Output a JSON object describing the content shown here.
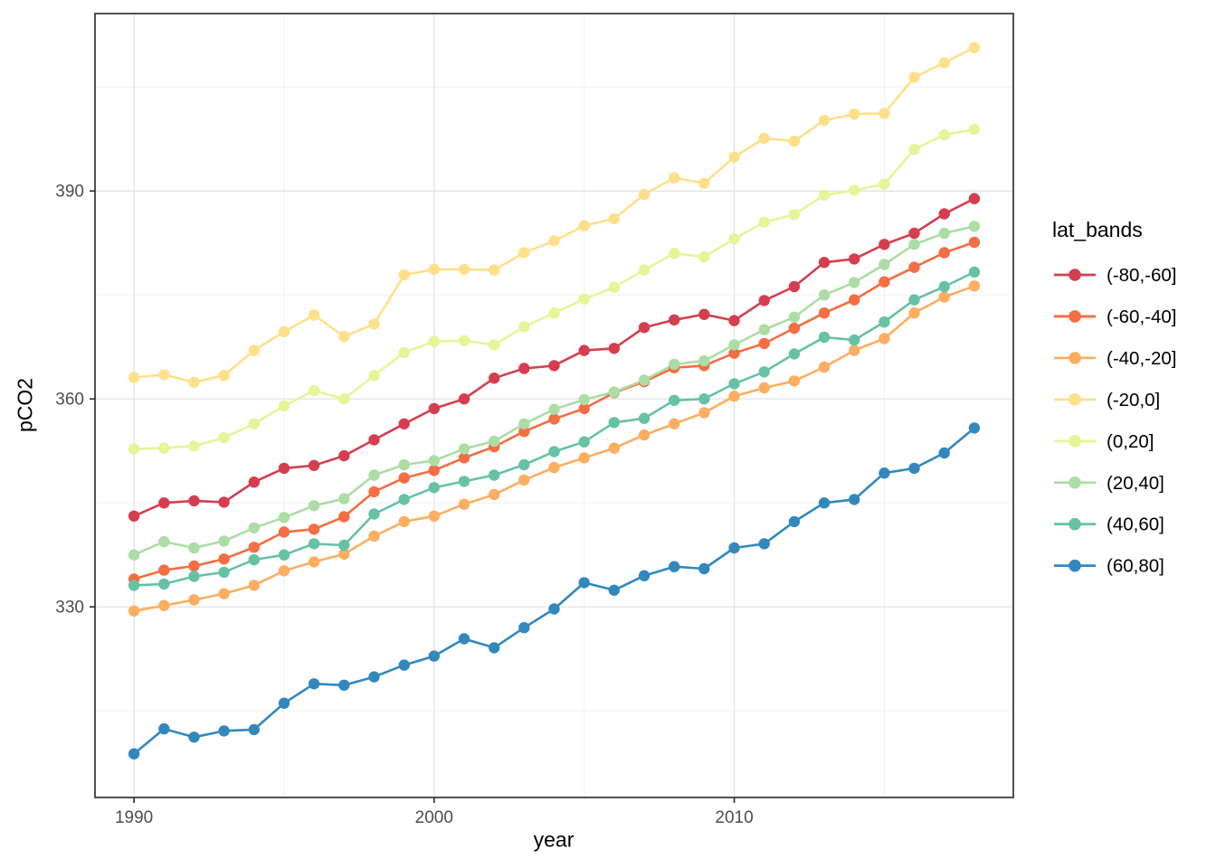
{
  "chart_data": {
    "type": "line",
    "title": "",
    "xlabel": "year",
    "ylabel": "pCO2",
    "legend_title": "lat_bands",
    "legend_position": "right",
    "grid": true,
    "x_domain": [
      1988.7,
      2019.3
    ],
    "y_domain": [
      302.5,
      415.6
    ],
    "x_ticks": [
      1990,
      2000,
      2010
    ],
    "x_minor_ticks": [
      1995,
      2005,
      2015
    ],
    "y_ticks": [
      330,
      360,
      390
    ],
    "y_minor_ticks": [
      315,
      345,
      375,
      405
    ],
    "x": [
      1990,
      1991,
      1992,
      1993,
      1994,
      1995,
      1996,
      1997,
      1998,
      1999,
      2000,
      2001,
      2002,
      2003,
      2004,
      2005,
      2006,
      2007,
      2008,
      2009,
      2010,
      2011,
      2012,
      2013,
      2014,
      2015,
      2016,
      2017,
      2018
    ],
    "series": [
      {
        "name": "(-80,-60]",
        "color": "#d53e4f",
        "values": [
          343.1,
          345.0,
          345.3,
          345.1,
          348.0,
          350.0,
          350.4,
          351.8,
          354.1,
          356.4,
          358.6,
          360.0,
          363.0,
          364.4,
          364.8,
          367.0,
          367.3,
          370.3,
          371.4,
          372.2,
          371.3,
          374.2,
          376.2,
          379.7,
          380.2,
          382.3,
          383.9,
          386.7,
          388.9
        ]
      },
      {
        "name": "(-60,-40]",
        "color": "#f46d43",
        "values": [
          334.0,
          335.3,
          335.9,
          336.9,
          338.6,
          340.8,
          341.2,
          343.0,
          346.6,
          348.6,
          349.7,
          351.5,
          353.1,
          355.3,
          357.1,
          358.6,
          360.9,
          362.5,
          364.5,
          364.8,
          366.6,
          368.0,
          370.2,
          372.4,
          374.3,
          376.9,
          379.0,
          381.1,
          382.6
        ]
      },
      {
        "name": "(-40,-20]",
        "color": "#fdae61",
        "values": [
          329.4,
          330.2,
          331.0,
          331.9,
          333.1,
          335.2,
          336.5,
          337.6,
          340.2,
          342.3,
          343.1,
          344.8,
          346.2,
          348.3,
          350.1,
          351.5,
          352.9,
          354.8,
          356.4,
          358.0,
          360.4,
          361.6,
          362.6,
          364.6,
          367.0,
          368.7,
          372.4,
          374.7,
          376.3
        ]
      },
      {
        "name": "(-20,0]",
        "color": "#fee08b",
        "values": [
          363.1,
          363.5,
          362.4,
          363.4,
          367.0,
          369.7,
          372.1,
          369.0,
          370.8,
          377.9,
          378.7,
          378.7,
          378.6,
          381.1,
          382.8,
          385.0,
          386.0,
          389.5,
          391.9,
          391.1,
          394.9,
          397.6,
          397.2,
          400.2,
          401.1,
          401.2,
          406.4,
          408.5,
          410.7
        ]
      },
      {
        "name": "(0,20]",
        "color": "#e6f598",
        "values": [
          352.8,
          352.9,
          353.2,
          354.4,
          356.4,
          359.0,
          361.2,
          360.0,
          363.4,
          366.7,
          368.3,
          368.4,
          367.8,
          370.4,
          372.4,
          374.4,
          376.1,
          378.6,
          381.0,
          380.5,
          383.1,
          385.5,
          386.6,
          389.4,
          390.1,
          391.0,
          396.0,
          398.1,
          398.9
        ]
      },
      {
        "name": "(20,40]",
        "color": "#abdda4",
        "values": [
          337.5,
          339.4,
          338.5,
          339.5,
          341.4,
          342.9,
          344.6,
          345.6,
          349.0,
          350.5,
          351.1,
          352.8,
          353.9,
          356.4,
          358.5,
          359.9,
          361.0,
          362.7,
          365.0,
          365.5,
          367.8,
          370.0,
          371.8,
          375.0,
          376.8,
          379.4,
          382.3,
          383.9,
          384.9
        ]
      },
      {
        "name": "(40,60]",
        "color": "#66c2a5",
        "values": [
          333.1,
          333.3,
          334.4,
          335.0,
          336.8,
          337.5,
          339.1,
          338.9,
          343.4,
          345.5,
          347.2,
          348.1,
          349.0,
          350.5,
          352.4,
          353.8,
          356.6,
          357.2,
          359.8,
          360.0,
          362.2,
          363.9,
          366.5,
          368.9,
          368.5,
          371.1,
          374.3,
          376.2,
          378.3
        ]
      },
      {
        "name": "(60,80]",
        "color": "#3288bd",
        "values": [
          308.8,
          312.4,
          311.2,
          312.1,
          312.3,
          316.1,
          318.9,
          318.7,
          319.9,
          321.6,
          322.9,
          325.4,
          324.1,
          327.0,
          329.7,
          333.5,
          332.4,
          334.5,
          335.8,
          335.5,
          338.5,
          339.1,
          342.3,
          345.0,
          345.5,
          349.3,
          350.0,
          352.2,
          355.8
        ]
      }
    ],
    "style": {
      "panel_border_color": "#333333",
      "grid_major_color": "#e4e4e4",
      "grid_minor_color": "#f0f0f0",
      "tick_label_color": "#4d4d4d",
      "text_color": "#000000",
      "background": "#ffffff"
    }
  }
}
